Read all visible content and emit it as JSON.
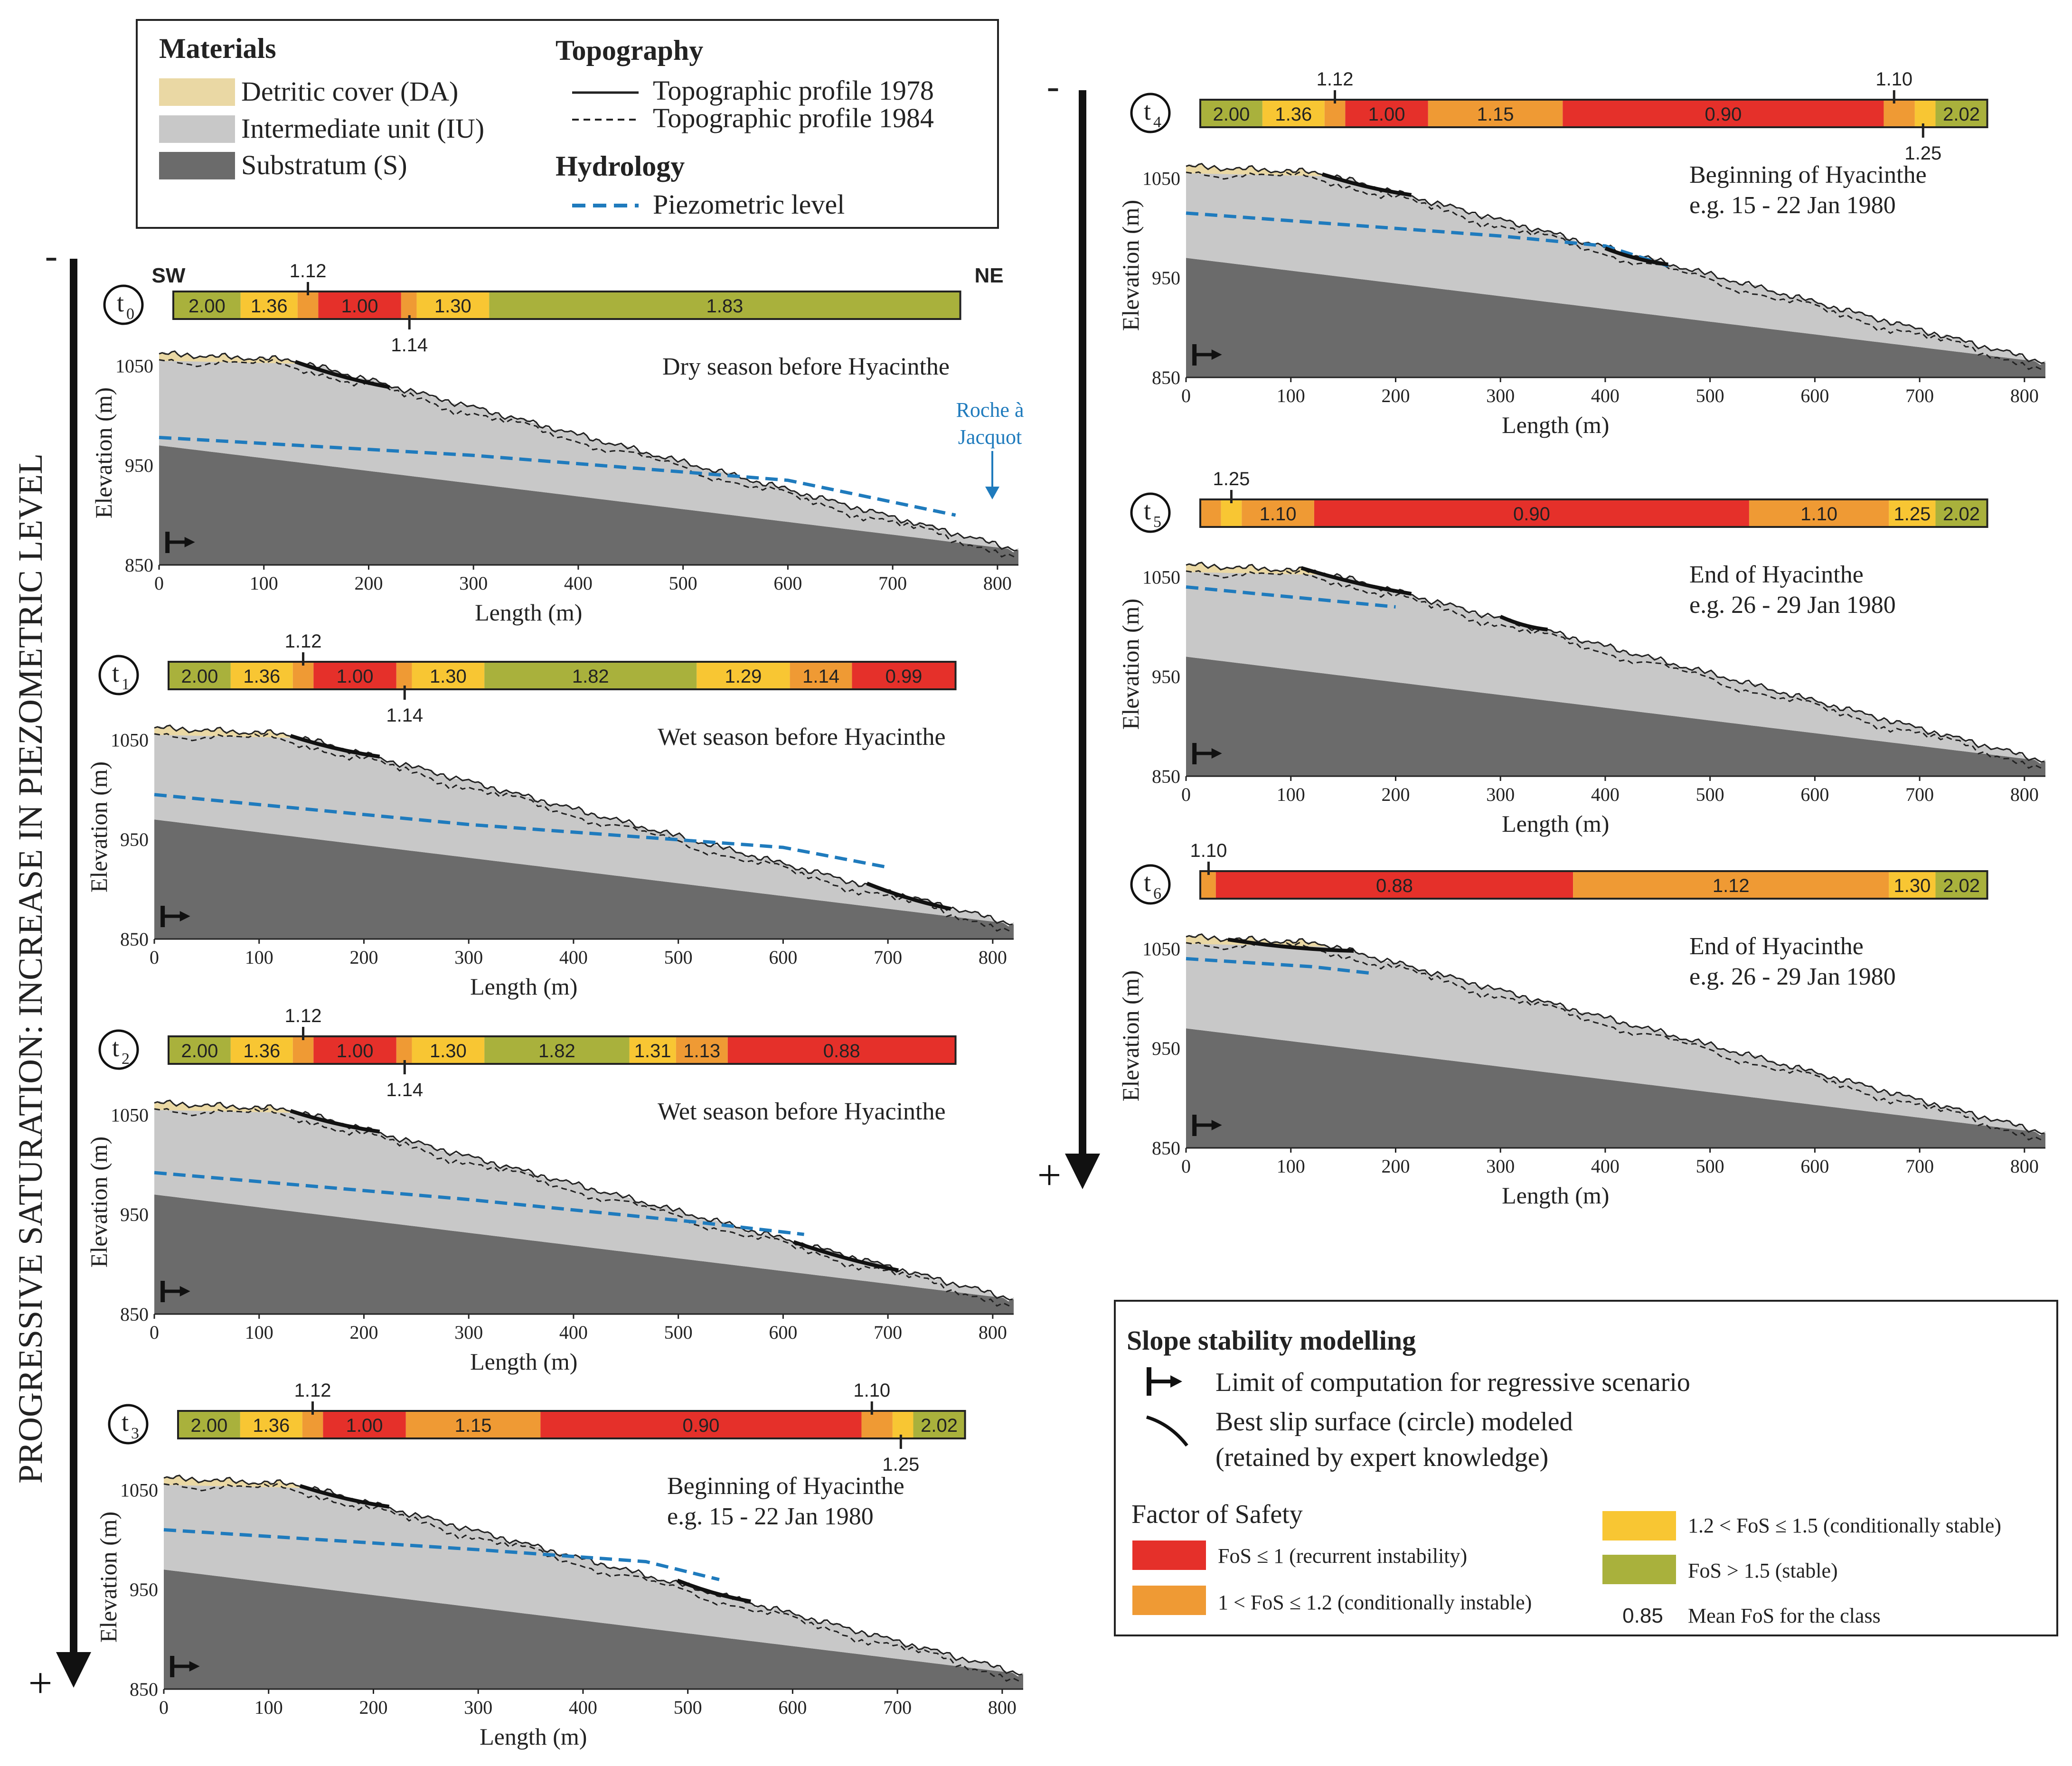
{
  "legend_top": {
    "materials_title": "Materials",
    "materials": [
      {
        "label": "Detritic cover (DA)",
        "color": "#ead8a4"
      },
      {
        "label": "Intermediate unit (IU)",
        "color": "#c8c8c8"
      },
      {
        "label": "Substratum (S)",
        "color": "#6b6b6b"
      }
    ],
    "topography_title": "Topography",
    "topo_solid": "Topographic profile 1978",
    "topo_dashed": "Topographic profile 1984",
    "hydrology_title": "Hydrology",
    "piezo": "Piezometric level"
  },
  "arrow_left": {
    "label": "PROGRESSIVE SATURATION: INCREASE IN PIEZOMETRIC LEVEL",
    "minus": "-",
    "plus": "+"
  },
  "arrow_right": {
    "minus": "-",
    "plus": "+"
  },
  "axes": {
    "xlabel": "Length (m)",
    "ylabel": "Elevation (m)",
    "xticks": [
      "0",
      "100",
      "200",
      "300",
      "400",
      "500",
      "600",
      "700",
      "800"
    ],
    "yticks": [
      "850",
      "950",
      "1050"
    ]
  },
  "orientation": {
    "left": "SW",
    "right": "NE"
  },
  "roche_label": [
    "Roche à",
    "Jacquot"
  ],
  "colors": {
    "red": "#e5302a",
    "orange": "#ef9a34",
    "yellow": "#f8c633",
    "green": "#a9b13c",
    "cover": "#ead8a4",
    "intermediate": "#c8c8c8",
    "substratum": "#6b6b6b",
    "piezo": "#1f7bbd"
  },
  "chart_data": {
    "type": "diagram",
    "x_range_m": [
      0,
      820
    ],
    "y_range_m": [
      850,
      1075
    ],
    "panels": [
      {
        "id": "t0",
        "sub": "0",
        "caption": [
          "Dry season before Hyacinthe"
        ],
        "fos_bar": [
          {
            "label": "2.00",
            "cls": "green",
            "x0": 0,
            "x1": 65
          },
          {
            "label": "1.36",
            "cls": "yellow",
            "x0": 65,
            "x1": 120
          },
          {
            "label": "",
            "cls": "orange",
            "x0": 120,
            "x1": 140
          },
          {
            "label": "1.00",
            "cls": "red",
            "x0": 140,
            "x1": 220
          },
          {
            "label": "",
            "cls": "orange",
            "x0": 220,
            "x1": 235
          },
          {
            "label": "1.30",
            "cls": "yellow",
            "x0": 235,
            "x1": 305
          },
          {
            "label": "1.83",
            "cls": "green",
            "x0": 305,
            "x1": 760
          }
        ],
        "markers": [
          {
            "label": "1.12",
            "x": 130,
            "pos": "above"
          },
          {
            "label": "1.14",
            "x": 228,
            "pos": "below"
          }
        ],
        "piezo": [
          [
            0,
            978
          ],
          [
            300,
            960
          ],
          [
            600,
            935
          ],
          [
            760,
            900
          ]
        ],
        "slips": [
          [
            130,
            220
          ]
        ]
      },
      {
        "id": "t1",
        "sub": "1",
        "caption": [
          "Wet season before Hyacinthe"
        ],
        "fos_bar": [
          {
            "label": "2.00",
            "cls": "green",
            "x0": 0,
            "x1": 60
          },
          {
            "label": "1.36",
            "cls": "yellow",
            "x0": 60,
            "x1": 120
          },
          {
            "label": "",
            "cls": "orange",
            "x0": 120,
            "x1": 140
          },
          {
            "label": "1.00",
            "cls": "red",
            "x0": 140,
            "x1": 220
          },
          {
            "label": "",
            "cls": "orange",
            "x0": 220,
            "x1": 235
          },
          {
            "label": "1.30",
            "cls": "yellow",
            "x0": 235,
            "x1": 305
          },
          {
            "label": "1.82",
            "cls": "green",
            "x0": 305,
            "x1": 510
          },
          {
            "label": "1.29",
            "cls": "yellow",
            "x0": 510,
            "x1": 600
          },
          {
            "label": "1.14",
            "cls": "orange",
            "x0": 600,
            "x1": 660
          },
          {
            "label": "0.99",
            "cls": "red",
            "x0": 660,
            "x1": 760
          }
        ],
        "markers": [
          {
            "label": "1.12",
            "x": 130,
            "pos": "above"
          },
          {
            "label": "1.14",
            "x": 228,
            "pos": "below"
          }
        ],
        "piezo": [
          [
            0,
            995
          ],
          [
            300,
            965
          ],
          [
            600,
            942
          ],
          [
            700,
            922
          ]
        ],
        "slips": [
          [
            130,
            215
          ],
          [
            680,
            760
          ]
        ]
      },
      {
        "id": "t2",
        "sub": "2",
        "caption": [
          "Wet season before Hyacinthe"
        ],
        "fos_bar": [
          {
            "label": "2.00",
            "cls": "green",
            "x0": 0,
            "x1": 60
          },
          {
            "label": "1.36",
            "cls": "yellow",
            "x0": 60,
            "x1": 120
          },
          {
            "label": "",
            "cls": "orange",
            "x0": 120,
            "x1": 140
          },
          {
            "label": "1.00",
            "cls": "red",
            "x0": 140,
            "x1": 220
          },
          {
            "label": "",
            "cls": "orange",
            "x0": 220,
            "x1": 235
          },
          {
            "label": "1.30",
            "cls": "yellow",
            "x0": 235,
            "x1": 305
          },
          {
            "label": "1.82",
            "cls": "green",
            "x0": 305,
            "x1": 445
          },
          {
            "label": "1.31",
            "cls": "yellow",
            "x0": 445,
            "x1": 490
          },
          {
            "label": "1.13",
            "cls": "orange",
            "x0": 490,
            "x1": 540
          },
          {
            "label": "0.88",
            "cls": "red",
            "x0": 540,
            "x1": 760
          }
        ],
        "markers": [
          {
            "label": "1.12",
            "x": 130,
            "pos": "above"
          },
          {
            "label": "1.14",
            "x": 228,
            "pos": "below"
          }
        ],
        "piezo": [
          [
            0,
            992
          ],
          [
            300,
            965
          ],
          [
            520,
            942
          ],
          [
            620,
            930
          ]
        ],
        "slips": [
          [
            130,
            215
          ],
          [
            610,
            710
          ]
        ]
      },
      {
        "id": "t3",
        "sub": "3",
        "caption": [
          "Beginning of Hyacinthe",
          "e.g. 15 - 22 Jan 1980"
        ],
        "fos_bar": [
          {
            "label": "2.00",
            "cls": "green",
            "x0": 0,
            "x1": 60
          },
          {
            "label": "1.36",
            "cls": "yellow",
            "x0": 60,
            "x1": 120
          },
          {
            "label": "",
            "cls": "orange",
            "x0": 120,
            "x1": 140
          },
          {
            "label": "1.00",
            "cls": "red",
            "x0": 140,
            "x1": 220
          },
          {
            "label": "1.15",
            "cls": "orange",
            "x0": 220,
            "x1": 350
          },
          {
            "label": "0.90",
            "cls": "red",
            "x0": 350,
            "x1": 660
          },
          {
            "label": "",
            "cls": "orange",
            "x0": 660,
            "x1": 690
          },
          {
            "label": "",
            "cls": "yellow",
            "x0": 690,
            "x1": 710
          },
          {
            "label": "2.02",
            "cls": "green",
            "x0": 710,
            "x1": 760
          }
        ],
        "markers": [
          {
            "label": "1.12",
            "x": 130,
            "pos": "above"
          },
          {
            "label": "1.10",
            "x": 670,
            "pos": "above"
          },
          {
            "label": "1.25",
            "x": 698,
            "pos": "below"
          }
        ],
        "piezo": [
          [
            0,
            1010
          ],
          [
            300,
            990
          ],
          [
            460,
            978
          ],
          [
            530,
            960
          ]
        ],
        "slips": [
          [
            130,
            215
          ],
          [
            490,
            560
          ]
        ]
      },
      {
        "id": "t4",
        "sub": "4",
        "caption": [
          "Beginning of Hyacinthe",
          "e.g. 15 - 22 Jan 1980"
        ],
        "fos_bar": [
          {
            "label": "2.00",
            "cls": "green",
            "x0": 0,
            "x1": 60
          },
          {
            "label": "1.36",
            "cls": "yellow",
            "x0": 60,
            "x1": 120
          },
          {
            "label": "",
            "cls": "orange",
            "x0": 120,
            "x1": 140
          },
          {
            "label": "1.00",
            "cls": "red",
            "x0": 140,
            "x1": 220
          },
          {
            "label": "1.15",
            "cls": "orange",
            "x0": 220,
            "x1": 350
          },
          {
            "label": "0.90",
            "cls": "red",
            "x0": 350,
            "x1": 660
          },
          {
            "label": "",
            "cls": "orange",
            "x0": 660,
            "x1": 690
          },
          {
            "label": "",
            "cls": "yellow",
            "x0": 690,
            "x1": 710
          },
          {
            "label": "2.02",
            "cls": "green",
            "x0": 710,
            "x1": 760
          }
        ],
        "markers": [
          {
            "label": "1.12",
            "x": 130,
            "pos": "above"
          },
          {
            "label": "1.10",
            "x": 670,
            "pos": "above"
          },
          {
            "label": "1.25",
            "x": 698,
            "pos": "below"
          }
        ],
        "piezo": [
          [
            0,
            1015
          ],
          [
            300,
            992
          ],
          [
            400,
            982
          ],
          [
            460,
            962
          ]
        ],
        "slips": [
          [
            130,
            215
          ],
          [
            400,
            460
          ]
        ]
      },
      {
        "id": "t5",
        "sub": "5",
        "caption": [
          "End of Hyacinthe",
          "e.g. 26 - 29 Jan 1980"
        ],
        "fos_bar": [
          {
            "label": "",
            "cls": "orange",
            "x0": 0,
            "x1": 20
          },
          {
            "label": "",
            "cls": "yellow",
            "x0": 20,
            "x1": 40
          },
          {
            "label": "1.10",
            "cls": "orange",
            "x0": 40,
            "x1": 110
          },
          {
            "label": "0.90",
            "cls": "red",
            "x0": 110,
            "x1": 530
          },
          {
            "label": "1.10",
            "cls": "orange",
            "x0": 530,
            "x1": 665
          },
          {
            "label": "1.25",
            "cls": "yellow",
            "x0": 665,
            "x1": 710
          },
          {
            "label": "2.02",
            "cls": "green",
            "x0": 710,
            "x1": 760
          }
        ],
        "markers": [
          {
            "label": "1.25",
            "x": 30,
            "pos": "above"
          }
        ],
        "piezo": [
          [
            0,
            1040
          ],
          [
            100,
            1030
          ],
          [
            200,
            1020
          ]
        ],
        "slips": [
          [
            110,
            215
          ],
          [
            300,
            345
          ]
        ]
      },
      {
        "id": "t6",
        "sub": "6",
        "caption": [
          "End of Hyacinthe",
          "e.g. 26 - 29 Jan 1980"
        ],
        "fos_bar": [
          {
            "label": "",
            "cls": "orange",
            "x0": 0,
            "x1": 15
          },
          {
            "label": "0.88",
            "cls": "red",
            "x0": 15,
            "x1": 360
          },
          {
            "label": "1.12",
            "cls": "orange",
            "x0": 360,
            "x1": 665
          },
          {
            "label": "1.30",
            "cls": "yellow",
            "x0": 665,
            "x1": 710
          },
          {
            "label": "2.02",
            "cls": "green",
            "x0": 710,
            "x1": 760
          }
        ],
        "markers": [
          {
            "label": "1.10",
            "x": 8,
            "pos": "above"
          }
        ],
        "piezo": [
          [
            0,
            1040
          ],
          [
            120,
            1032
          ],
          [
            180,
            1025
          ]
        ],
        "slips": [
          [
            40,
            160
          ]
        ]
      }
    ]
  },
  "legend_bottom": {
    "title": "Slope stability modelling",
    "limit": "Limit of computation for regressive scenario",
    "slip_1": "Best slip surface (circle) modeled",
    "slip_2": "(retained by expert knowledge)",
    "fos_title": "Factor of Safety",
    "items": [
      {
        "label": "FoS ≤ 1 (recurrent instability)",
        "cls": "red"
      },
      {
        "label": "1 < FoS ≤ 1.2 (conditionally instable)",
        "cls": "orange"
      },
      {
        "label": "1.2 < FoS ≤ 1.5 (conditionally stable)",
        "cls": "yellow"
      },
      {
        "label": "FoS > 1.5 (stable)",
        "cls": "green"
      }
    ],
    "mean_value": "0.85",
    "mean_label": "Mean FoS for the class"
  }
}
